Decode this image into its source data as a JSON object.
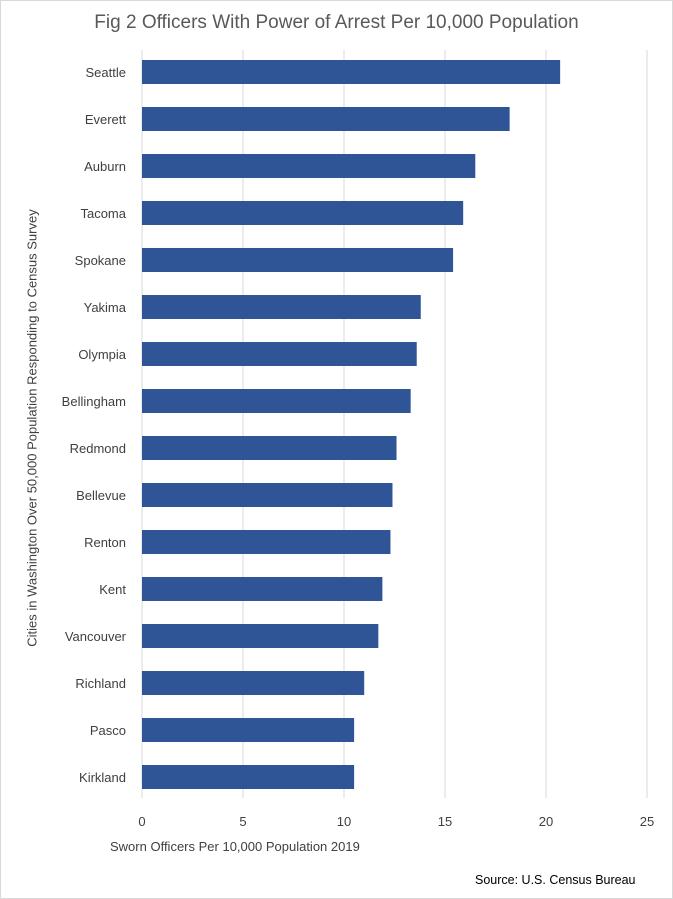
{
  "chart_data": {
    "type": "bar",
    "orientation": "horizontal",
    "title": "Fig 2 Officers With Power of Arrest Per 10,000 Population",
    "xlabel": "Sworn  Officers Per 10,000 Population 2019",
    "ylabel": "Cities in Washington Over 50,000 Population Responding to Census Survey",
    "categories": [
      "Seattle",
      "Everett",
      "Auburn",
      "Tacoma",
      "Spokane",
      "Yakima",
      "Olympia",
      "Bellingham",
      "Redmond",
      "Bellevue",
      "Renton",
      "Kent",
      "Vancouver",
      "Richland",
      "Pasco",
      "Kirkland"
    ],
    "values": [
      20.7,
      18.2,
      16.5,
      15.9,
      15.4,
      13.8,
      13.6,
      13.3,
      12.6,
      12.4,
      12.3,
      11.9,
      11.7,
      11.0,
      10.5,
      10.5
    ],
    "xlim": [
      0,
      25
    ],
    "xticks": [
      0,
      5,
      10,
      15,
      20,
      25
    ],
    "grid": true,
    "legend": "none",
    "bar_color": "#2F5597",
    "grid_color": "#D9D9D9"
  },
  "source_note": "Source: U.S. Census Bureau"
}
